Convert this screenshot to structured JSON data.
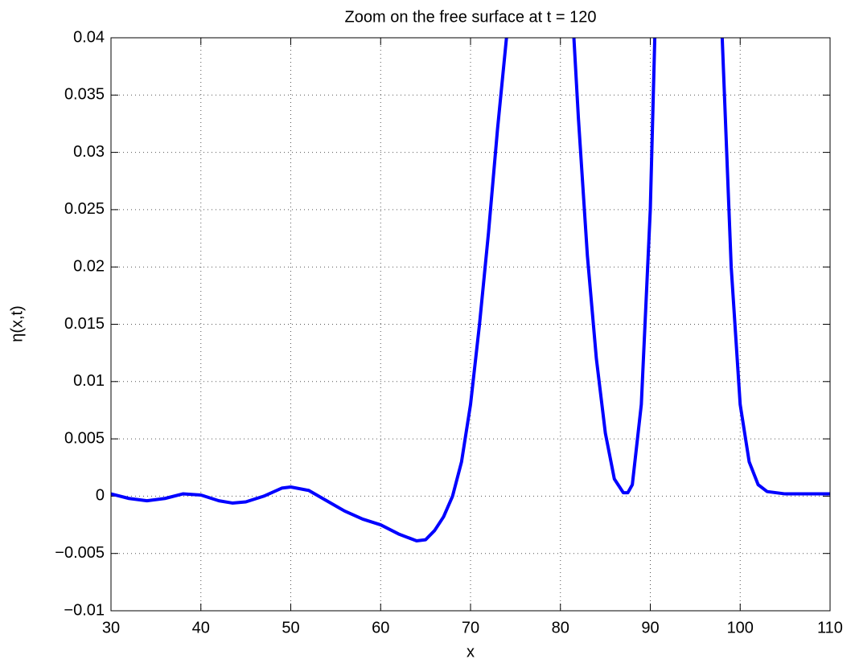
{
  "chart_data": {
    "type": "line",
    "title": "Zoom on the free surface at t = 120",
    "xlabel": "x",
    "ylabel": "η(x,t)",
    "x": [
      30,
      32,
      34,
      36,
      38,
      40,
      42,
      43.5,
      45,
      47,
      49,
      50,
      52,
      54,
      56,
      58,
      60,
      62,
      64,
      65,
      66,
      67,
      68,
      69,
      70,
      71,
      72,
      73,
      74,
      77.5,
      81.5,
      82,
      83,
      84,
      85,
      86,
      87,
      87.5,
      88,
      89,
      90,
      90.5,
      94,
      98,
      98.5,
      99,
      100,
      101,
      102,
      103,
      105,
      110
    ],
    "series": [
      {
        "name": "η(x,t)",
        "color": "#0000ff",
        "values": [
          0.0002,
          -0.0002,
          -0.0004,
          -0.0002,
          0.0002,
          0.0001,
          -0.0004,
          -0.0006,
          -0.0005,
          0.0,
          0.0007,
          0.0008,
          0.0005,
          -0.0004,
          -0.0013,
          -0.002,
          -0.0025,
          -0.0033,
          -0.0039,
          -0.0038,
          -0.003,
          -0.0018,
          0.0,
          0.003,
          0.008,
          0.015,
          0.023,
          0.032,
          0.04,
          null,
          0.04,
          0.033,
          0.021,
          0.012,
          0.0055,
          0.0015,
          0.0003,
          0.0003,
          0.001,
          0.008,
          0.025,
          0.04,
          null,
          0.04,
          0.03,
          0.02,
          0.008,
          0.003,
          0.001,
          0.0004,
          0.0002,
          0.0002
        ]
      }
    ],
    "xlim": [
      30,
      110
    ],
    "xticks": [
      30,
      40,
      50,
      60,
      70,
      80,
      90,
      100,
      110
    ],
    "ylim": [
      -0.01,
      0.04
    ],
    "yticks": [
      {
        "value": -0.01,
        "label": "−0.01"
      },
      {
        "value": -0.005,
        "label": "−0.005"
      },
      0,
      0.005,
      0.01,
      0.015,
      0.02,
      0.025,
      0.03,
      0.035,
      0.04
    ],
    "grid": true
  }
}
